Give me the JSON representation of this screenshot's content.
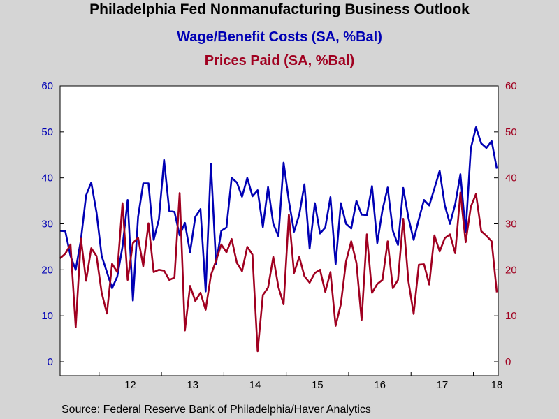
{
  "titles": {
    "main": "Philadelphia Fed Nonmanufacturing Business Outlook",
    "sub1": "Wage/Benefit Costs (SA, %Bal)",
    "sub2": "Prices Paid (SA, %Bal)"
  },
  "source": "Source:  Federal Reserve Bank of Philadelphia/Haver Analytics",
  "colors": {
    "wage": "#0000b4",
    "prices": "#a00020",
    "plot_bg": "#ffffff",
    "page_bg": "#d5d5d5"
  },
  "chart_data": {
    "type": "line",
    "x_start": "2011-05",
    "frequency": "monthly",
    "x_tick_labels": [
      "12",
      "13",
      "14",
      "15",
      "16",
      "17",
      "18"
    ],
    "ylim_left": [
      0,
      60
    ],
    "ylim_right": [
      0,
      60
    ],
    "yticks_left": [
      "0",
      "10",
      "20",
      "30",
      "40",
      "50",
      "60"
    ],
    "yticks_right": [
      "0",
      "10",
      "20",
      "30",
      "40",
      "50",
      "60"
    ],
    "grid": false,
    "series": [
      {
        "name": "Wage/Benefit Costs (SA, %Bal)",
        "axis": "left",
        "values": [
          28.5,
          28.4,
          23.0,
          20.0,
          26.5,
          36.2,
          39.0,
          32.5,
          23.0,
          19.5,
          16.0,
          18.5,
          25.0,
          35.2,
          13.3,
          31.5,
          38.8,
          38.8,
          26.5,
          31.0,
          43.9,
          32.8,
          32.6,
          27.5,
          30.2,
          23.8,
          31.5,
          33.2,
          15.3,
          43.1,
          21.3,
          28.5,
          29.2,
          40.0,
          39.0,
          35.9,
          40.0,
          36.0,
          37.3,
          29.3,
          38.0,
          30.0,
          27.3,
          43.3,
          35.0,
          28.3,
          32.0,
          38.6,
          24.6,
          34.5,
          27.9,
          29.2,
          35.8,
          21.2,
          34.5,
          30.0,
          29.0,
          35.0,
          32.0,
          31.9,
          38.2,
          25.8,
          33.0,
          37.9,
          28.5,
          25.4,
          37.8,
          31.3,
          26.5,
          31.0,
          35.2,
          34.0,
          37.7,
          41.5,
          34.0,
          30.0,
          34.3,
          40.8,
          28.2,
          46.4,
          51.0,
          47.5,
          46.5,
          48.0,
          42.0
        ]
      },
      {
        "name": "Prices Paid (SA, %Bal)",
        "axis": "right",
        "values": [
          22.5,
          23.5,
          25.5,
          7.5,
          26.8,
          17.6,
          24.7,
          23.0,
          15.0,
          10.5,
          21.3,
          19.5,
          34.5,
          17.8,
          25.8,
          27.0,
          20.8,
          30.1,
          19.5,
          20.0,
          19.8,
          17.8,
          18.3,
          36.7,
          6.8,
          16.5,
          13.2,
          15.0,
          11.3,
          18.8,
          22.0,
          25.5,
          23.8,
          26.7,
          21.5,
          19.7,
          25.0,
          23.3,
          2.3,
          14.5,
          16.1,
          22.8,
          16.2,
          12.5,
          32.0,
          19.3,
          22.8,
          18.6,
          17.2,
          19.3,
          20.0,
          15.2,
          19.5,
          7.8,
          12.5,
          21.8,
          26.2,
          21.5,
          9.1,
          27.7,
          15.0,
          16.9,
          17.8,
          26.2,
          16.0,
          17.8,
          31.1,
          17.5,
          10.4,
          21.1,
          21.2,
          16.8,
          27.5,
          24.0,
          26.9,
          27.7,
          23.6,
          36.8,
          26.0,
          33.7,
          36.5,
          28.4,
          27.4,
          26.2,
          15.1
        ]
      }
    ]
  }
}
